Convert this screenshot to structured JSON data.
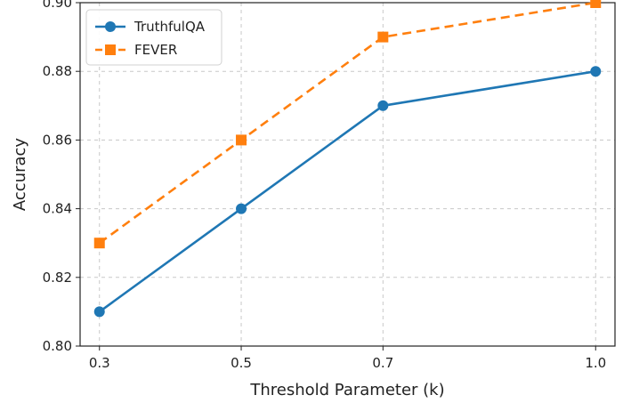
{
  "chart_data": {
    "type": "line",
    "x": [
      0.3,
      0.5,
      0.7,
      1.0
    ],
    "x_tick_labels": [
      "0.3",
      "0.5",
      "0.7",
      "1.0"
    ],
    "series": [
      {
        "name": "TruthfulQA",
        "values": [
          0.81,
          0.84,
          0.87,
          0.88
        ],
        "color": "#1f77b4",
        "style": "solid",
        "marker": "circle"
      },
      {
        "name": "FEVER",
        "values": [
          0.83,
          0.86,
          0.89,
          0.9
        ],
        "color": "#ff7f0e",
        "style": "dashed",
        "marker": "square"
      }
    ],
    "title": "",
    "xlabel": "Threshold Parameter (k)",
    "ylabel": "Accuracy",
    "ylim": [
      0.8,
      0.9
    ],
    "y_ticks": [
      0.8,
      0.82,
      0.84,
      0.86,
      0.88,
      0.9
    ],
    "y_tick_labels": [
      "0.80",
      "0.82",
      "0.84",
      "0.86",
      "0.88",
      "0.90"
    ],
    "grid": true,
    "legend_position": "top-left"
  }
}
